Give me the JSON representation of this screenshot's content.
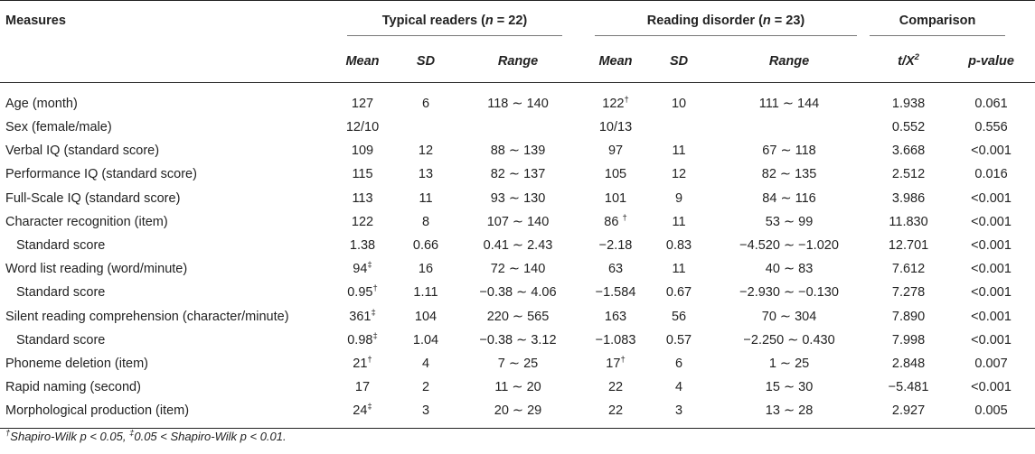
{
  "header": {
    "measures": "Measures",
    "group_typical": "Typical readers (",
    "group_typical_n": "n",
    "group_typical_eq": " = 22)",
    "group_rd": "Reading disorder (",
    "group_rd_n": "n",
    "group_rd_eq": " = 23)",
    "group_comparison": "Comparison",
    "mean": "Mean",
    "sd": "SD",
    "range": "Range",
    "t_stat": "t/X",
    "t_sup": "2",
    "p_value": "p-value"
  },
  "rows": [
    {
      "label": "Age (month)",
      "indent": false,
      "tr_mean": "127",
      "tr_mean_sup": "",
      "tr_sd": "6",
      "tr_range": "118 ∼ 140",
      "rd_mean": "122",
      "rd_mean_sup": "†",
      "rd_sd": "10",
      "rd_range": "111 ∼ 144",
      "t": "1.938",
      "p": "0.061"
    },
    {
      "label": "Sex (female/male)",
      "indent": false,
      "tr_mean": "12/10",
      "tr_mean_sup": "",
      "tr_sd": "",
      "tr_range": "",
      "rd_mean": "10/13",
      "rd_mean_sup": "",
      "rd_sd": "",
      "rd_range": "",
      "t": "0.552",
      "p": "0.556"
    },
    {
      "label": "Verbal IQ (standard score)",
      "indent": false,
      "tr_mean": "109",
      "tr_mean_sup": "",
      "tr_sd": "12",
      "tr_range": "88 ∼ 139",
      "rd_mean": "97",
      "rd_mean_sup": "",
      "rd_sd": "11",
      "rd_range": "67 ∼ 118",
      "t": "3.668",
      "p": "<0.001"
    },
    {
      "label": "Performance IQ (standard score)",
      "indent": false,
      "tr_mean": "115",
      "tr_mean_sup": "",
      "tr_sd": "13",
      "tr_range": "82 ∼ 137",
      "rd_mean": "105",
      "rd_mean_sup": "",
      "rd_sd": "12",
      "rd_range": "82 ∼ 135",
      "t": "2.512",
      "p": "0.016"
    },
    {
      "label": "Full-Scale IQ (standard score)",
      "indent": false,
      "tr_mean": "113",
      "tr_mean_sup": "",
      "tr_sd": "11",
      "tr_range": "93 ∼ 130",
      "rd_mean": "101",
      "rd_mean_sup": "",
      "rd_sd": "9",
      "rd_range": "84 ∼ 116",
      "t": "3.986",
      "p": "<0.001"
    },
    {
      "label": "Character recognition (item)",
      "indent": false,
      "tr_mean": "122",
      "tr_mean_sup": "",
      "tr_sd": "8",
      "tr_range": "107 ∼ 140",
      "rd_mean": "86 ",
      "rd_mean_sup": "†",
      "rd_sd": "11",
      "rd_range": "53 ∼ 99",
      "t": "11.830",
      "p": "<0.001"
    },
    {
      "label": "Standard score",
      "indent": true,
      "tr_mean": "1.38",
      "tr_mean_sup": "",
      "tr_sd": "0.66",
      "tr_range": "0.41 ∼ 2.43",
      "rd_mean": "−2.18",
      "rd_mean_sup": "",
      "rd_sd": "0.83",
      "rd_range": "−4.520 ∼ −1.020",
      "t": "12.701",
      "p": "<0.001"
    },
    {
      "label": "Word list reading (word/minute)",
      "indent": false,
      "tr_mean": "94",
      "tr_mean_sup": "‡",
      "tr_sd": "16",
      "tr_range": "72 ∼ 140",
      "rd_mean": "63",
      "rd_mean_sup": "",
      "rd_sd": "11",
      "rd_range": "40 ∼ 83",
      "t": "7.612",
      "p": "<0.001"
    },
    {
      "label": "Standard score",
      "indent": true,
      "tr_mean": "0.95",
      "tr_mean_sup": "†",
      "tr_sd": "1.11",
      "tr_range": "−0.38 ∼ 4.06",
      "rd_mean": "−1.584",
      "rd_mean_sup": "",
      "rd_sd": "0.67",
      "rd_range": "−2.930 ∼ −0.130",
      "t": "7.278",
      "p": "<0.001"
    },
    {
      "label": "Silent reading comprehension (character/minute)",
      "indent": false,
      "tr_mean": "361",
      "tr_mean_sup": "‡",
      "tr_sd": "104",
      "tr_range": "220 ∼ 565",
      "rd_mean": "163",
      "rd_mean_sup": "",
      "rd_sd": "56",
      "rd_range": "70 ∼ 304",
      "t": "7.890",
      "p": "<0.001"
    },
    {
      "label": "Standard score",
      "indent": true,
      "tr_mean": "0.98",
      "tr_mean_sup": "‡",
      "tr_sd": "1.04",
      "tr_range": "−0.38 ∼ 3.12",
      "rd_mean": "−1.083",
      "rd_mean_sup": "",
      "rd_sd": "0.57",
      "rd_range": "−2.250 ∼ 0.430",
      "t": "7.998",
      "p": "<0.001"
    },
    {
      "label": "Phoneme deletion (item)",
      "indent": false,
      "tr_mean": "21",
      "tr_mean_sup": "†",
      "tr_sd": "4",
      "tr_range": "7 ∼ 25",
      "rd_mean": "17",
      "rd_mean_sup": "†",
      "rd_sd": "6",
      "rd_range": "1 ∼ 25",
      "t": "2.848",
      "p": "0.007"
    },
    {
      "label": "Rapid naming (second)",
      "indent": false,
      "tr_mean": "17",
      "tr_mean_sup": "",
      "tr_sd": "2",
      "tr_range": "11 ∼ 20",
      "rd_mean": "22",
      "rd_mean_sup": "",
      "rd_sd": "4",
      "rd_range": "15 ∼ 30",
      "t": "−5.481",
      "p": "<0.001"
    },
    {
      "label": "Morphological production (item)",
      "indent": false,
      "tr_mean": "24",
      "tr_mean_sup": "‡",
      "tr_sd": "3",
      "tr_range": "20 ∼ 29",
      "rd_mean": "22",
      "rd_mean_sup": "",
      "rd_sd": "3",
      "rd_range": "13 ∼ 28",
      "t": "2.927",
      "p": "0.005"
    }
  ],
  "footnote": {
    "dagger": "†",
    "text1": "Shapiro-Wilk p < 0.05, ",
    "ddagger": "‡",
    "text2": "0.05 < Shapiro-Wilk p < 0.01."
  }
}
